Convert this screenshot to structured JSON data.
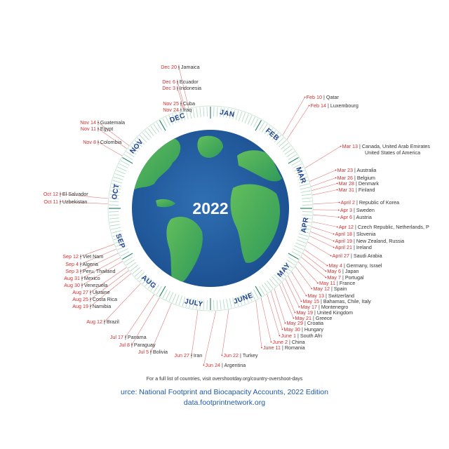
{
  "year": "2022",
  "months": [
    "JAN",
    "FEB",
    "MAR",
    "APR",
    "MAY",
    "JUNE",
    "JULY",
    "AUG",
    "SEP",
    "OCT",
    "NOV",
    "DEC"
  ],
  "labels": [
    {
      "date": "Dec 20",
      "country": "Jamaica"
    },
    {
      "date": "Dec 6",
      "country": "Ecuador"
    },
    {
      "date": "Dec 3",
      "country": "Indonesia"
    },
    {
      "date": "Nov 25",
      "country": "Cuba"
    },
    {
      "date": "Nov 24",
      "country": "Iraq"
    },
    {
      "date": "Nov 14",
      "country": "Guatemala"
    },
    {
      "date": "Nov 11",
      "country": "Egypt"
    },
    {
      "date": "Nov 8",
      "country": "Colombia"
    },
    {
      "date": "Oct 12",
      "country": "El Salvador"
    },
    {
      "date": "Oct 11",
      "country": "Uzbekistan"
    },
    {
      "date": "Sep 12",
      "country": "Viet Nam"
    },
    {
      "date": "Sep 4",
      "country": "Algeria"
    },
    {
      "date": "Sep 3",
      "country": "Peru, Thailand"
    },
    {
      "date": "Aug 31",
      "country": "Mexico"
    },
    {
      "date": "Aug 30",
      "country": "Venezuela"
    },
    {
      "date": "Aug 27",
      "country": "Ukraine"
    },
    {
      "date": "Aug 25",
      "country": "Costa Rica"
    },
    {
      "date": "Aug 19",
      "country": "Namibia"
    },
    {
      "date": "Aug 12",
      "country": "Brazil"
    },
    {
      "date": "Jul 17",
      "country": "Panama"
    },
    {
      "date": "Jul 8",
      "country": "Paraguay"
    },
    {
      "date": "Jul 5",
      "country": "Bolivia"
    },
    {
      "date": "Jun 27",
      "country": "Iran"
    },
    {
      "date": "Jun 24",
      "country": "Argentina"
    },
    {
      "date": "Jun 22",
      "country": "Turkey"
    },
    {
      "date": "June 11",
      "country": "Romania"
    },
    {
      "date": "June 2",
      "country": "China"
    },
    {
      "date": "June 1",
      "country": "South Afri"
    },
    {
      "date": "May 30",
      "country": "Hungary"
    },
    {
      "date": "May 29",
      "country": "Croatia"
    },
    {
      "date": "May 21",
      "country": "Greece"
    },
    {
      "date": "May 19",
      "country": "United Kingdom"
    },
    {
      "date": "May 17",
      "country": "Montenegro"
    },
    {
      "date": "May 15",
      "country": "Bahamas, Chile, Italy"
    },
    {
      "date": "May 13",
      "country": "Switzerland"
    },
    {
      "date": "May 12",
      "country": "Spain"
    },
    {
      "date": "May 11",
      "country": "France"
    },
    {
      "date": "May 7",
      "country": "Portugal"
    },
    {
      "date": "May 6",
      "country": "Japan"
    },
    {
      "date": "May 4",
      "country": "Germany, Israel"
    },
    {
      "date": "April 27",
      "country": "Saudi Arabia"
    },
    {
      "date": "April 21",
      "country": "Ireland"
    },
    {
      "date": "April 19",
      "country": "New Zealand, Russia"
    },
    {
      "date": "April 18",
      "country": "Slovenia"
    },
    {
      "date": "Apr 12",
      "country": "Czech Republic, Netherlands, P"
    },
    {
      "date": "Apr 6",
      "country": "Austria"
    },
    {
      "date": "Apr 3",
      "country": "Sweden"
    },
    {
      "date": "April 2",
      "country": "Republic of Korea"
    },
    {
      "date": "Mar 31",
      "country": "Finland"
    },
    {
      "date": "Mar 28",
      "country": "Denmark"
    },
    {
      "date": "Mar 26",
      "country": "Belgium"
    },
    {
      "date": "Mar 23",
      "country": "Australia"
    },
    {
      "date": "Mar 13",
      "country": "Canada, United Arab Emirates",
      "country2": "United States of America"
    },
    {
      "date": "Feb 14",
      "country": "Luxembourg"
    },
    {
      "date": "Feb 10",
      "country": "Qatar"
    }
  ],
  "footer": {
    "note": "For a full list of countries, visit overshootday.org/country-overshoot-days",
    "source": "urce: National Footprint and Biocapacity Accounts, 2022 Edition",
    "site": "data.footprintnetwork.org"
  }
}
